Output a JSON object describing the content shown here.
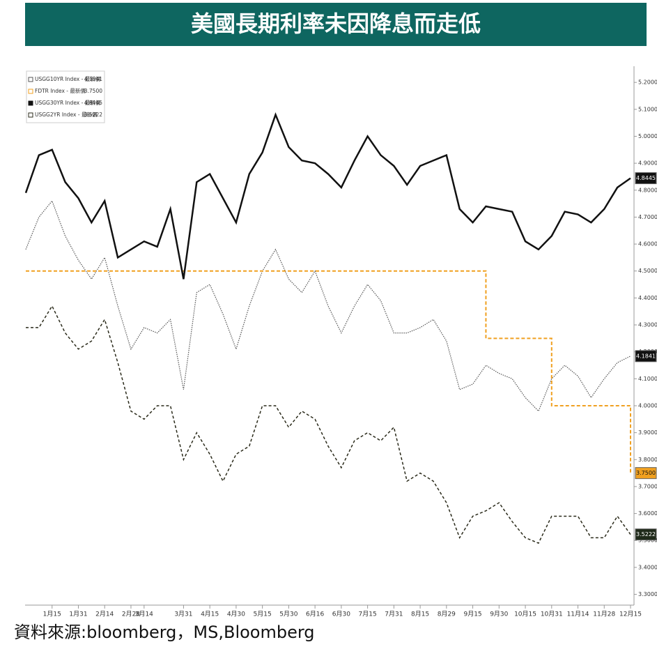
{
  "chart_data": {
    "type": "line",
    "title": "美國長期利率未因降息而走低",
    "source": "資料來源:bloomberg，MS,Bloomberg",
    "categories": [
      null,
      null,
      "1月15",
      null,
      "1月31",
      null,
      "2月14",
      null,
      "2月28",
      "3月14",
      null,
      null,
      "3月31",
      null,
      "4月15",
      null,
      "4月30",
      null,
      "5月15",
      null,
      "5月30",
      null,
      "6月16",
      null,
      "6月30",
      null,
      "7月15",
      null,
      "7月31",
      null,
      "8月15",
      null,
      "8月29",
      null,
      "9月15",
      null,
      "9月30",
      null,
      "10月15",
      null,
      "10月31",
      null,
      "11月14",
      null,
      "11月28",
      null,
      "12月15"
    ],
    "series": [
      {
        "name": "USGG10YR Index - 最新價",
        "color": "#555555",
        "dash": "1.5 1.5",
        "width": 1.2,
        "last_value": 4.1841,
        "last_label": "4.1841",
        "tag_color": "#111111",
        "values": [
          4.58,
          4.7,
          4.76,
          4.63,
          4.54,
          4.47,
          4.55,
          4.37,
          4.21,
          4.29,
          4.27,
          4.32,
          4.06,
          4.42,
          4.45,
          4.34,
          4.21,
          4.37,
          4.5,
          4.58,
          4.47,
          4.42,
          4.5,
          4.37,
          4.27,
          4.37,
          4.45,
          4.39,
          4.27,
          4.27,
          4.29,
          4.32,
          4.24,
          4.06,
          4.08,
          4.15,
          4.12,
          4.1,
          4.03,
          3.98,
          4.1,
          4.15,
          4.11,
          4.03,
          4.1,
          4.16,
          4.1841
        ]
      },
      {
        "name": "FDTR Index - 最新價",
        "color": "#f0a020",
        "dash": "5 3",
        "width": 2,
        "step": true,
        "last_value": 3.75,
        "last_label": "3.7500",
        "tag_color": "#f0a020",
        "values": [
          4.5,
          4.5,
          4.5,
          4.5,
          4.5,
          4.5,
          4.5,
          4.5,
          4.5,
          4.5,
          4.5,
          4.5,
          4.5,
          4.5,
          4.5,
          4.5,
          4.5,
          4.5,
          4.5,
          4.5,
          4.5,
          4.5,
          4.5,
          4.5,
          4.5,
          4.5,
          4.5,
          4.5,
          4.5,
          4.5,
          4.5,
          4.5,
          4.5,
          4.5,
          4.5,
          4.25,
          4.25,
          4.25,
          4.25,
          4.25,
          4.0,
          4.0,
          4.0,
          4.0,
          4.0,
          4.0,
          3.75
        ]
      },
      {
        "name": "USGG30YR Index - 最新價",
        "color": "#111111",
        "dash": "",
        "width": 2.5,
        "last_value": 4.8445,
        "last_label": "4.8445",
        "tag_color": "#111111",
        "values": [
          4.79,
          4.93,
          4.95,
          4.83,
          4.77,
          4.68,
          4.76,
          4.55,
          4.58,
          4.61,
          4.59,
          4.73,
          4.47,
          4.83,
          4.86,
          4.77,
          4.68,
          4.86,
          4.94,
          5.08,
          4.96,
          4.91,
          4.9,
          4.86,
          4.81,
          4.91,
          5.0,
          4.93,
          4.89,
          4.82,
          4.89,
          4.91,
          4.93,
          4.73,
          4.68,
          4.74,
          4.73,
          4.72,
          4.61,
          4.58,
          4.63,
          4.72,
          4.71,
          4.68,
          4.73,
          4.81,
          4.8445
        ]
      },
      {
        "name": "USGG2YR Index - 最新價",
        "color": "#2a2a1a",
        "dash": "4 3",
        "width": 1.5,
        "last_value": 3.5222,
        "last_label": "3.5222",
        "tag_color": "#1f2a1a",
        "values": [
          4.29,
          4.29,
          4.37,
          4.27,
          4.21,
          4.24,
          4.32,
          4.16,
          3.98,
          3.95,
          4.0,
          4.0,
          3.8,
          3.9,
          3.82,
          3.72,
          3.82,
          3.85,
          4.0,
          4.0,
          3.92,
          3.98,
          3.95,
          3.85,
          3.77,
          3.87,
          3.9,
          3.87,
          3.92,
          3.72,
          3.75,
          3.72,
          3.64,
          3.51,
          3.59,
          3.61,
          3.64,
          3.57,
          3.51,
          3.49,
          3.59,
          3.59,
          3.59,
          3.51,
          3.51,
          3.59,
          3.5222
        ]
      }
    ],
    "ylim": [
      3.26,
      5.26
    ],
    "yticks": [
      {
        "value": 3.3,
        "label": "3.3000"
      },
      {
        "value": 3.4,
        "label": "3.4000"
      },
      {
        "value": 3.5,
        "label": "3.5000"
      },
      {
        "value": 3.6,
        "label": "3.6000"
      },
      {
        "value": 3.7,
        "label": "3.7000"
      },
      {
        "value": 3.8,
        "label": "3.8000"
      },
      {
        "value": 3.9,
        "label": "3.9000"
      },
      {
        "value": 4.0,
        "label": "4.0000"
      },
      {
        "value": 4.1,
        "label": "4.1000"
      },
      {
        "value": 4.2,
        "label": "4.2000"
      },
      {
        "value": 4.3,
        "label": "4.3000"
      },
      {
        "value": 4.4,
        "label": "4.4000"
      },
      {
        "value": 4.5,
        "label": "4.5000"
      },
      {
        "value": 4.6,
        "label": "4.6000"
      },
      {
        "value": 4.7,
        "label": "4.7000"
      },
      {
        "value": 4.8,
        "label": "4.8000"
      },
      {
        "value": 4.9,
        "label": "4.9000"
      },
      {
        "value": 5.0,
        "label": "5.0000"
      },
      {
        "value": 5.1,
        "label": "5.1000"
      },
      {
        "value": 5.2,
        "label": "5.2000"
      }
    ],
    "grid": false
  }
}
